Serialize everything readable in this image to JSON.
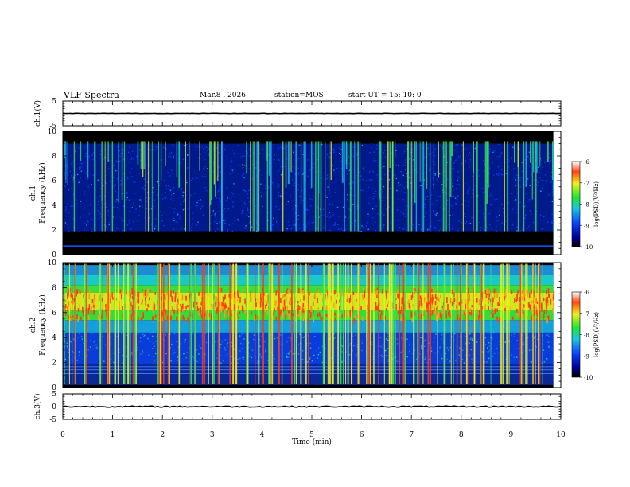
{
  "header": {
    "title": "VLF Spectra",
    "date": "Mar.8 , 2026",
    "station": "station=MOS",
    "start": "start UT =  15: 10: 0"
  },
  "chart_data": [
    {
      "type": "line",
      "name": "ch1-waveform",
      "ylabel": "ch.1(V)",
      "ylim": [
        -5,
        5
      ],
      "y_ticks": [
        5,
        -5
      ],
      "x": [
        0,
        10
      ],
      "y": [
        0,
        0
      ]
    },
    {
      "type": "heatmap",
      "name": "ch1-spectrogram",
      "ylabel_top": "ch.1",
      "ylabel": "Frequency (kHz)",
      "ylim": [
        0,
        10
      ],
      "y_ticks": [
        0,
        2,
        4,
        6,
        8,
        10
      ],
      "xlim": [
        0,
        9.85
      ],
      "colorbar": {
        "label": "log(PSD)(V²/Hz)",
        "range": [
          -10,
          -6
        ],
        "ticks": [
          -6,
          -7,
          -8,
          -9,
          -10
        ]
      }
    },
    {
      "type": "heatmap",
      "name": "ch2-spectrogram",
      "ylabel_top": "ch.2",
      "ylabel": "Frequency (kHz)",
      "ylim": [
        0,
        10
      ],
      "y_ticks": [
        0,
        2,
        4,
        6,
        8,
        10
      ],
      "xlim": [
        0,
        9.85
      ],
      "colorbar": {
        "label": "log(PSD)(V²/Hz)",
        "range": [
          -10,
          -6
        ],
        "ticks": [
          -6,
          -7,
          -8,
          -9,
          -10
        ]
      }
    },
    {
      "type": "line",
      "name": "ch3-waveform",
      "ylabel": "ch.3(V)",
      "ylim": [
        -5,
        5
      ],
      "y_ticks": [
        5,
        0,
        -5
      ],
      "x": [
        0,
        10
      ],
      "y": [
        0,
        0
      ]
    }
  ],
  "xaxis": {
    "label": "Time (min)",
    "range": [
      0,
      10
    ],
    "ticks": [
      "0",
      "1",
      "2",
      "3",
      "4",
      "5",
      "6",
      "7",
      "8",
      "9",
      "10"
    ]
  },
  "labels": {
    "ch1_v": "ch.1(V)",
    "ch3_v": "ch.3(V)",
    "ch1": "ch.1",
    "ch2": "ch.2",
    "freq": "Frequency (kHz)",
    "cb_label": "log(PSD)(V²/Hz)"
  },
  "colors": {
    "black": "#000000",
    "blue": "#0a32c8",
    "cyan": "#16b4d2",
    "green": "#1ee632",
    "yellow": "#f0f01e",
    "red": "#f01414"
  }
}
